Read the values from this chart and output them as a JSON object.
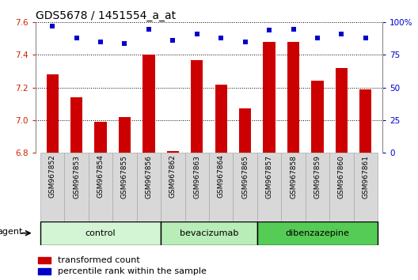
{
  "title": "GDS5678 / 1451554_a_at",
  "samples": [
    "GSM967852",
    "GSM967853",
    "GSM967854",
    "GSM967855",
    "GSM967856",
    "GSM967862",
    "GSM967863",
    "GSM967864",
    "GSM967865",
    "GSM967857",
    "GSM967858",
    "GSM967859",
    "GSM967860",
    "GSM967861"
  ],
  "bar_values": [
    7.28,
    7.14,
    6.99,
    7.02,
    7.4,
    6.81,
    7.37,
    7.22,
    7.07,
    7.48,
    7.48,
    7.24,
    7.32,
    7.19
  ],
  "percentile_values": [
    97,
    88,
    85,
    84,
    95,
    86,
    91,
    88,
    85,
    94,
    95,
    88,
    91,
    88
  ],
  "bar_color": "#cc0000",
  "dot_color": "#0000cc",
  "ylim_left": [
    6.8,
    7.6
  ],
  "ylim_right": [
    0,
    100
  ],
  "yticks_left": [
    6.8,
    7.0,
    7.2,
    7.4,
    7.6
  ],
  "yticks_right": [
    0,
    25,
    50,
    75,
    100
  ],
  "groups": [
    {
      "label": "control",
      "start": 0,
      "end": 5,
      "color": "#d4f5d4"
    },
    {
      "label": "bevacizumab",
      "start": 5,
      "end": 9,
      "color": "#b8edb8"
    },
    {
      "label": "dibenzazepine",
      "start": 9,
      "end": 14,
      "color": "#55cc55"
    }
  ],
  "agent_label": "agent",
  "legend_bar_label": "transformed count",
  "legend_dot_label": "percentile rank within the sample",
  "background_color": "#ffffff",
  "plot_bg_color": "#ffffff",
  "title_fontsize": 10,
  "tick_fontsize": 7.5,
  "axis_label_color_left": "#cc2200",
  "axis_label_color_right": "#0000cc",
  "sample_box_color": "#d8d8d8",
  "sample_box_edge": "#aaaaaa"
}
